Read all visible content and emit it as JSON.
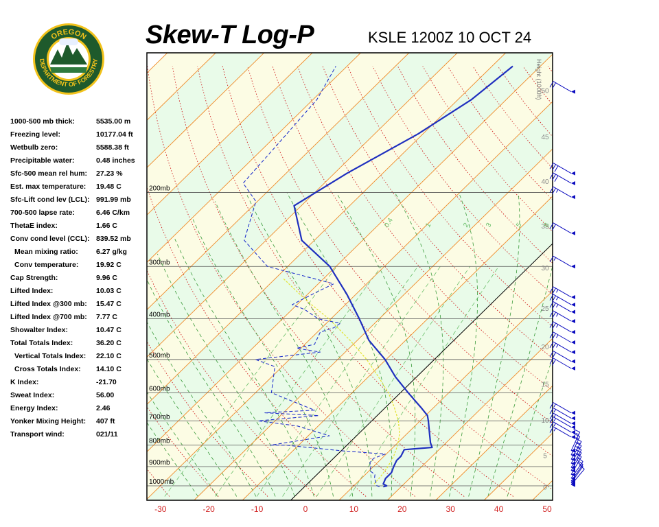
{
  "logo": {
    "top": "OREGON",
    "bottom": "DEPARTMENT OF FORESTRY"
  },
  "title": "Skew-T Log-P",
  "subtitle": "KSLE 1200Z 10 OCT 24",
  "stats": [
    {
      "label": "1000-500 mb thick:",
      "value": "5535.00 m",
      "indent": false
    },
    {
      "label": "Freezing level:",
      "value": "10177.04 ft",
      "indent": false
    },
    {
      "label": "Wetbulb zero:",
      "value": "5588.38 ft",
      "indent": false
    },
    {
      "label": "Precipitable water:",
      "value": "0.48 inches",
      "indent": false
    },
    {
      "label": "Sfc-500 mean rel hum:",
      "value": "27.23 %",
      "indent": false
    },
    {
      "label": "Est. max temperature:",
      "value": "19.48 C",
      "indent": false
    },
    {
      "label": "Sfc-Lift cond lev (LCL):",
      "value": "991.99 mb",
      "indent": false
    },
    {
      "label": "700-500 lapse rate:",
      "value": "6.46 C/km",
      "indent": false
    },
    {
      "label": "ThetaE index:",
      "value": "1.66 C",
      "indent": false
    },
    {
      "label": "Conv cond level (CCL):",
      "value": "839.52 mb",
      "indent": false
    },
    {
      "label": "Mean mixing ratio:",
      "value": "6.27 g/kg",
      "indent": true
    },
    {
      "label": "Conv temperature:",
      "value": "19.92 C",
      "indent": true
    },
    {
      "label": "Cap Strength:",
      "value": "9.96 C",
      "indent": false
    },
    {
      "label": "Lifted Index:",
      "value": "10.03 C",
      "indent": false
    },
    {
      "label": "Lifted Index @300 mb:",
      "value": "15.47 C",
      "indent": false
    },
    {
      "label": "Lifted Index @700 mb:",
      "value": "7.77 C",
      "indent": false
    },
    {
      "label": "Showalter Index:",
      "value": "10.47 C",
      "indent": false
    },
    {
      "label": "Total Totals Index:",
      "value": "36.20 C",
      "indent": false
    },
    {
      "label": "Vertical Totals Index:",
      "value": "22.10 C",
      "indent": true
    },
    {
      "label": "Cross Totals Index:",
      "value": "14.10 C",
      "indent": true
    },
    {
      "label": "K Index:",
      "value": "-21.70",
      "indent": false
    },
    {
      "label": "Sweat Index:",
      "value": "56.00",
      "indent": false
    },
    {
      "label": "Energy Index:",
      "value": "2.46",
      "indent": false
    },
    {
      "label": "Yonker Mixing Height:",
      "value": "407 ft",
      "indent": false
    },
    {
      "label": "Transport wind:",
      "value": "021/11",
      "indent": false
    }
  ],
  "chart_data": {
    "type": "line",
    "title": "Skew-T Log-P",
    "subtitle": "KSLE 1200Z 10 OCT 24",
    "x_ticks": [
      -30,
      -20,
      -10,
      0,
      10,
      20,
      30,
      40,
      50
    ],
    "xlim": [
      -30,
      50
    ],
    "pressure_levels": [
      {
        "p": 1000,
        "label": "1000mb"
      },
      {
        "p": 900,
        "label": "900mb"
      },
      {
        "p": 800,
        "label": "800mb"
      },
      {
        "p": 700,
        "label": "700mb"
      },
      {
        "p": 600,
        "label": "600mb"
      },
      {
        "p": 500,
        "label": "500mb"
      },
      {
        "p": 400,
        "label": "400mb"
      },
      {
        "p": 300,
        "label": "300mb"
      },
      {
        "p": 200,
        "label": "200mb"
      }
    ],
    "height_axis_label": "Height (1000ft)",
    "height_ticks": [
      {
        "v": "0",
        "p": 1005
      },
      {
        "v": "5",
        "p": 845
      },
      {
        "v": "10",
        "p": 697
      },
      {
        "v": "15",
        "p": 572
      },
      {
        "v": "20",
        "p": 466
      },
      {
        "v": "25",
        "p": 377
      },
      {
        "v": "30",
        "p": 302
      },
      {
        "v": "35",
        "p": 240
      },
      {
        "v": "40",
        "p": 188
      },
      {
        "v": "45",
        "p": 147
      },
      {
        "v": "50",
        "p": 114
      }
    ],
    "mixing_ratio_labels": [
      "0.4",
      "1",
      "2",
      "3",
      "5",
      "8"
    ],
    "temperature": [
      {
        "p": 1005,
        "t": 16.3
      },
      {
        "p": 1000,
        "t": 16.8
      },
      {
        "p": 990,
        "t": 15.7
      },
      {
        "p": 960,
        "t": 15.0
      },
      {
        "p": 930,
        "t": 15.0
      },
      {
        "p": 900,
        "t": 14.2
      },
      {
        "p": 870,
        "t": 13.5
      },
      {
        "p": 850,
        "t": 13.5
      },
      {
        "p": 820,
        "t": 12.8
      },
      {
        "p": 810,
        "t": 18.1
      },
      {
        "p": 790,
        "t": 16.8
      },
      {
        "p": 750,
        "t": 14.6
      },
      {
        "p": 700,
        "t": 11.7
      },
      {
        "p": 680,
        "t": 10.4
      },
      {
        "p": 650,
        "t": 7.3
      },
      {
        "p": 600,
        "t": 1.6
      },
      {
        "p": 550,
        "t": -4.4
      },
      {
        "p": 500,
        "t": -10.2
      },
      {
        "p": 450,
        "t": -17.6
      },
      {
        "p": 400,
        "t": -24.1
      },
      {
        "p": 350,
        "t": -31.8
      },
      {
        "p": 300,
        "t": -41.3
      },
      {
        "p": 260,
        "t": -52.6
      },
      {
        "p": 215,
        "t": -61.5
      },
      {
        "p": 180,
        "t": -57.4
      },
      {
        "p": 145,
        "t": -51.0
      },
      {
        "p": 120,
        "t": -47.2
      },
      {
        "p": 100,
        "t": -45.7
      }
    ],
    "dewpoint": [
      {
        "p": 1005,
        "t": 15.5
      },
      {
        "p": 1000,
        "t": 14.8
      },
      {
        "p": 960,
        "t": 12.7
      },
      {
        "p": 940,
        "t": 12.0
      },
      {
        "p": 920,
        "t": 10.1
      },
      {
        "p": 900,
        "t": 9.5
      },
      {
        "p": 880,
        "t": 8.4
      },
      {
        "p": 860,
        "t": 8.3
      },
      {
        "p": 840,
        "t": 9.8
      },
      {
        "p": 825,
        "t": 0.0
      },
      {
        "p": 800,
        "t": -12.7
      },
      {
        "p": 800,
        "t": -15.8
      },
      {
        "p": 760,
        "t": -5.6
      },
      {
        "p": 720,
        "t": -14.3
      },
      {
        "p": 700,
        "t": -23.5
      },
      {
        "p": 680,
        "t": -12.1
      },
      {
        "p": 670,
        "t": -23.8
      },
      {
        "p": 660,
        "t": -14.1
      },
      {
        "p": 600,
        "t": -26.7
      },
      {
        "p": 520,
        "t": -31.5
      },
      {
        "p": 500,
        "t": -37.0
      },
      {
        "p": 480,
        "t": -25.2
      },
      {
        "p": 470,
        "t": -30.9
      },
      {
        "p": 460,
        "t": -28.0
      },
      {
        "p": 430,
        "t": -29.4
      },
      {
        "p": 420,
        "t": -27.5
      },
      {
        "p": 410,
        "t": -27.1
      },
      {
        "p": 400,
        "t": -32.6
      },
      {
        "p": 380,
        "t": -37.4
      },
      {
        "p": 370,
        "t": -41.0
      },
      {
        "p": 360,
        "t": -40.1
      },
      {
        "p": 340,
        "t": -38.0
      },
      {
        "p": 330,
        "t": -36.8
      },
      {
        "p": 300,
        "t": -54.2
      },
      {
        "p": 260,
        "t": -64.5
      },
      {
        "p": 210,
        "t": -70.3
      },
      {
        "p": 190,
        "t": -76.8
      },
      {
        "p": 150,
        "t": -78.0
      },
      {
        "p": 120,
        "t": -79.2
      },
      {
        "p": 100,
        "t": -82.3
      }
    ],
    "parcel": [
      {
        "p": 990,
        "t": 13.8
      },
      {
        "p": 950,
        "t": 13.6
      },
      {
        "p": 900,
        "t": 13.0
      },
      {
        "p": 850,
        "t": 12.0
      },
      {
        "p": 800,
        "t": 10.5
      },
      {
        "p": 750,
        "t": 8.4
      },
      {
        "p": 700,
        "t": 5.5
      },
      {
        "p": 650,
        "t": 1.8
      },
      {
        "p": 600,
        "t": -2.5
      },
      {
        "p": 550,
        "t": -7.9
      },
      {
        "p": 500,
        "t": -14.0
      },
      {
        "p": 450,
        "t": -21.5
      },
      {
        "p": 400,
        "t": -30.4
      },
      {
        "p": 370,
        "t": -37.0
      },
      {
        "p": 350,
        "t": -41.5
      },
      {
        "p": 320,
        "t": -48.5
      }
    ],
    "winds": [
      {
        "p": 995,
        "dir": 40,
        "spd": 10
      },
      {
        "p": 985,
        "dir": 35,
        "spd": 10
      },
      {
        "p": 975,
        "dir": 35,
        "spd": 10
      },
      {
        "p": 960,
        "dir": 35,
        "spd": 10
      },
      {
        "p": 940,
        "dir": 30,
        "spd": 15
      },
      {
        "p": 920,
        "dir": 30,
        "spd": 15
      },
      {
        "p": 905,
        "dir": 30,
        "spd": 15
      },
      {
        "p": 885,
        "dir": 30,
        "spd": 15
      },
      {
        "p": 865,
        "dir": 30,
        "spd": 15
      },
      {
        "p": 845,
        "dir": 25,
        "spd": 15
      },
      {
        "p": 825,
        "dir": 25,
        "spd": 15
      },
      {
        "p": 765,
        "dir": 300,
        "spd": 15
      },
      {
        "p": 745,
        "dir": 300,
        "spd": 15
      },
      {
        "p": 725,
        "dir": 300,
        "spd": 15
      },
      {
        "p": 710,
        "dir": 300,
        "spd": 15
      },
      {
        "p": 690,
        "dir": 300,
        "spd": 15
      },
      {
        "p": 670,
        "dir": 300,
        "spd": 15
      },
      {
        "p": 525,
        "dir": 300,
        "spd": 20
      },
      {
        "p": 505,
        "dir": 300,
        "spd": 20
      },
      {
        "p": 480,
        "dir": 300,
        "spd": 25
      },
      {
        "p": 455,
        "dir": 300,
        "spd": 25
      },
      {
        "p": 430,
        "dir": 300,
        "spd": 25
      },
      {
        "p": 405,
        "dir": 300,
        "spd": 25
      },
      {
        "p": 385,
        "dir": 300,
        "spd": 25
      },
      {
        "p": 370,
        "dir": 300,
        "spd": 25
      },
      {
        "p": 355,
        "dir": 300,
        "spd": 25
      },
      {
        "p": 300,
        "dir": 300,
        "spd": 15
      },
      {
        "p": 250,
        "dir": 300,
        "spd": 20
      },
      {
        "p": 205,
        "dir": 300,
        "spd": 25
      },
      {
        "p": 190,
        "dir": 300,
        "spd": 30
      },
      {
        "p": 180,
        "dir": 300,
        "spd": 30
      },
      {
        "p": 115,
        "dir": 300,
        "spd": 20
      }
    ]
  }
}
